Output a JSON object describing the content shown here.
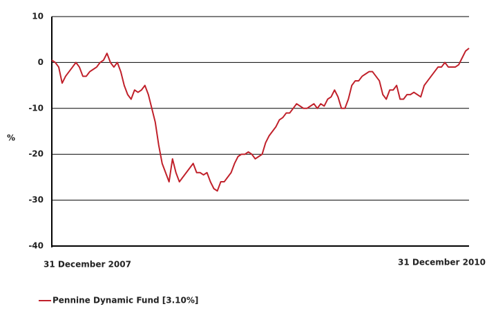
{
  "chart_data": {
    "type": "line",
    "ylabel": "%",
    "categories": [
      "31 December 2007",
      null,
      null,
      null,
      null,
      null,
      null,
      null,
      null,
      null,
      null,
      null,
      null,
      null,
      null,
      null,
      null,
      null,
      null,
      null,
      null,
      null,
      null,
      null,
      null,
      null,
      null,
      null,
      null,
      null,
      null,
      null,
      null,
      null,
      null,
      null,
      null,
      null,
      null,
      null,
      null,
      null,
      null,
      null,
      null,
      null,
      null,
      null,
      null,
      null,
      null,
      null,
      null,
      null,
      null,
      null,
      null,
      null,
      null,
      null,
      null,
      null,
      null,
      null,
      null,
      null,
      null,
      null,
      null,
      null,
      null,
      null,
      null,
      null,
      null,
      null,
      null,
      null,
      null,
      null,
      null,
      null,
      null,
      null,
      null,
      null,
      null,
      null,
      null,
      null,
      null,
      null,
      null,
      null,
      null,
      null,
      null,
      null,
      null,
      null,
      null,
      null,
      null,
      null,
      null,
      null,
      null,
      null,
      null,
      null,
      null,
      null,
      null,
      null,
      null,
      null,
      null,
      null,
      null,
      null,
      null,
      "31 December 2010"
    ],
    "series": [
      {
        "name": "Pennine Dynamic Fund [3.10%]",
        "color": "#c0202a",
        "values": [
          0.5,
          0,
          -1,
          -4.5,
          -3,
          -2,
          -1,
          0,
          -1,
          -3,
          -3,
          -2,
          -1.5,
          -1,
          0,
          0.5,
          2,
          0,
          -1,
          0,
          -2,
          -5,
          -7,
          -8,
          -6,
          -6.5,
          -6,
          -5,
          -7,
          -10,
          -13,
          -18,
          -22,
          -24,
          -26,
          -21,
          -24,
          -26,
          -25,
          -24,
          -23,
          -22,
          -24,
          -24,
          -24.5,
          -24,
          -26,
          -27.5,
          -28,
          -26,
          -26,
          -25,
          -24,
          -22,
          -20.5,
          -20,
          -20,
          -19.5,
          -20,
          -21,
          -20.5,
          -20,
          -17.5,
          -16,
          -15,
          -14,
          -12.5,
          -12,
          -11,
          -11,
          -10,
          -9,
          -9.5,
          -10,
          -10,
          -9.5,
          -9,
          -10,
          -9,
          -9.5,
          -8,
          -7.5,
          -6,
          -7.5,
          -10,
          -10,
          -8,
          -5,
          -4,
          -4,
          -3,
          -2.5,
          -2,
          -2,
          -3,
          -4,
          -7,
          -8,
          -6,
          -6,
          -5,
          -8,
          -8,
          -7,
          -7,
          -6.5,
          -7,
          -7.5,
          -5,
          -4,
          -3,
          -2,
          -1,
          -1,
          0,
          -1,
          -1,
          -1,
          -0.5,
          1,
          2.5,
          3.1
        ]
      }
    ],
    "ylim": [
      -40,
      10
    ],
    "yticks": [
      -40,
      -30,
      -20,
      -10,
      0,
      10
    ],
    "grid": true
  }
}
